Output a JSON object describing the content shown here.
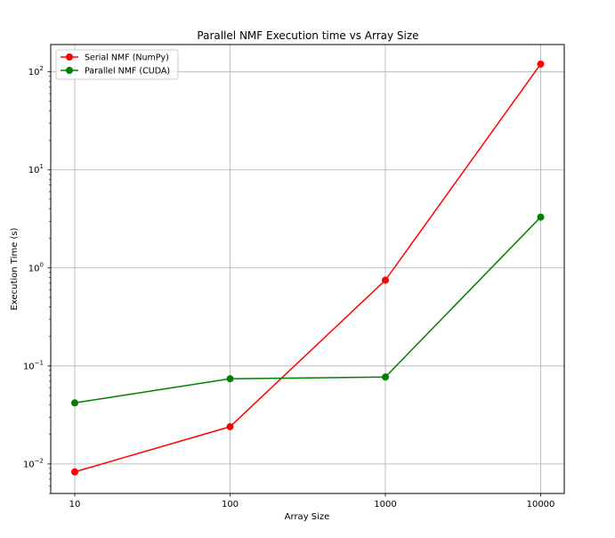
{
  "chart_data": {
    "type": "line",
    "title": "Parallel NMF Execution time vs Array Size",
    "xlabel": "Array Size",
    "ylabel": "Execution Time (s)",
    "x_scale": "categorical",
    "y_scale": "log",
    "categories": [
      "10",
      "100",
      "1000",
      "10000"
    ],
    "ylim": [
      0.005,
      190
    ],
    "y_ticks": [
      {
        "value": 0.01,
        "base": "10",
        "exp": "−2"
      },
      {
        "value": 0.1,
        "base": "10",
        "exp": "−1"
      },
      {
        "value": 1,
        "base": "10",
        "exp": "0"
      },
      {
        "value": 10,
        "base": "10",
        "exp": "1"
      },
      {
        "value": 100,
        "base": "10",
        "exp": "2"
      }
    ],
    "grid": true,
    "legend_position": "top-left",
    "series": [
      {
        "name": "Serial NMF (NumPy)",
        "color": "#ff0000",
        "marker": "circle",
        "values": [
          0.0083,
          0.024,
          0.75,
          120
        ]
      },
      {
        "name": "Parallel NMF (CUDA)",
        "color": "#008000",
        "marker": "circle",
        "values": [
          0.042,
          0.074,
          0.077,
          3.3
        ]
      }
    ]
  }
}
